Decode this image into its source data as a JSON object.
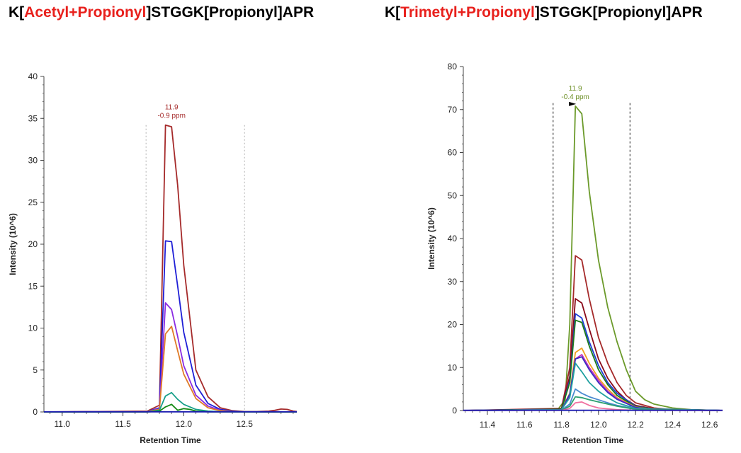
{
  "titles": {
    "left": {
      "prefix": "K[",
      "mod_red": "Acetyl+Propionyl",
      "suffix": "]STGGK[Propionyl]APR"
    },
    "right": {
      "prefix": "K[",
      "mod_red": "Trimetyl+Propionyl",
      "suffix": "]STGGK[Propionyl]APR"
    }
  },
  "colors": {
    "title_highlight": "#e8201c"
  },
  "chart_data": [
    {
      "type": "line",
      "title": "K[Acetyl+Propionyl]STGGK[Propionyl]APR",
      "xlabel": "Retention Time",
      "ylabel": "Intensity (10^6)",
      "xlim": [
        10.85,
        12.93
      ],
      "ylim": [
        0,
        40
      ],
      "xticks": [
        11.0,
        11.5,
        12.0,
        12.5
      ],
      "xtick_labels": [
        "11.0",
        "11.5",
        "12.0",
        "12.5"
      ],
      "yticks": [
        0,
        5,
        10,
        15,
        20,
        25,
        30,
        35,
        40
      ],
      "ytick_labels": [
        "0",
        "5",
        "10",
        "15",
        "20",
        "25",
        "30",
        "35",
        "40"
      ],
      "boundaries": [
        11.69,
        12.5
      ],
      "boundary_style": "gray-dotted",
      "peak_annotation": {
        "rt": "11.9",
        "ppm": "-0.9 ppm",
        "color": "#a52a2a",
        "at": [
          11.9,
          34.2
        ]
      },
      "series": [
        {
          "name": "brown",
          "color": "#a52a2a",
          "x": [
            10.85,
            11.7,
            11.8,
            11.85,
            11.9,
            11.95,
            12.0,
            12.1,
            12.2,
            12.3,
            12.4,
            12.5,
            12.6,
            12.7,
            12.75,
            12.8,
            12.85,
            12.9,
            12.93
          ],
          "y": [
            0,
            0.1,
            0.8,
            34.2,
            34.0,
            27.0,
            17.5,
            5.0,
            1.8,
            0.5,
            0.15,
            0.05,
            0.05,
            0.1,
            0.2,
            0.35,
            0.3,
            0.1,
            0.05
          ]
        },
        {
          "name": "blue",
          "color": "#1f1fd6",
          "x": [
            10.85,
            11.7,
            11.8,
            11.85,
            11.9,
            11.95,
            12.0,
            12.1,
            12.2,
            12.3,
            12.4,
            12.5,
            12.93
          ],
          "y": [
            0,
            0.05,
            0.5,
            20.4,
            20.3,
            15.0,
            9.5,
            3.2,
            1.0,
            0.3,
            0.1,
            0.03,
            0
          ]
        },
        {
          "name": "purple",
          "color": "#8a2be2",
          "x": [
            10.85,
            11.7,
            11.8,
            11.85,
            11.9,
            11.95,
            12.0,
            12.1,
            12.2,
            12.3,
            12.4,
            12.93
          ],
          "y": [
            0,
            0.05,
            0.4,
            13.0,
            12.2,
            9.0,
            5.5,
            2.0,
            0.7,
            0.2,
            0.05,
            0
          ]
        },
        {
          "name": "orange",
          "color": "#e07b28",
          "x": [
            10.85,
            11.7,
            11.8,
            11.85,
            11.9,
            11.95,
            12.0,
            12.1,
            12.2,
            12.3,
            12.4,
            12.93
          ],
          "y": [
            0,
            0.05,
            0.3,
            9.3,
            10.2,
            7.3,
            4.5,
            1.6,
            0.5,
            0.15,
            0.05,
            0
          ]
        },
        {
          "name": "teal",
          "color": "#18a08a",
          "x": [
            10.85,
            11.7,
            11.8,
            11.85,
            11.9,
            11.95,
            12.0,
            12.1,
            12.2,
            12.3,
            12.93
          ],
          "y": [
            0,
            0.02,
            0.2,
            1.9,
            2.3,
            1.5,
            0.9,
            0.3,
            0.1,
            0.03,
            0
          ]
        },
        {
          "name": "green",
          "color": "#138a13",
          "x": [
            10.85,
            11.7,
            11.8,
            11.85,
            11.9,
            11.95,
            12.0,
            12.05,
            12.1,
            12.2,
            12.93
          ],
          "y": [
            0,
            0,
            0.1,
            0.6,
            0.9,
            0.2,
            0.4,
            0.3,
            0.1,
            0.02,
            0
          ]
        },
        {
          "name": "navy baseline",
          "color": "#1b1bb0",
          "x": [
            10.85,
            12.93
          ],
          "y": [
            0.02,
            0.02
          ]
        }
      ]
    },
    {
      "type": "line",
      "title": "K[Trimetyl+Propionyl]STGGK[Propionyl]APR",
      "xlabel": "Retention Time",
      "ylabel": "Intensity (10^6)",
      "xlim": [
        11.27,
        12.67
      ],
      "ylim": [
        0,
        80
      ],
      "xticks": [
        11.4,
        11.6,
        11.8,
        12.0,
        12.2,
        12.4,
        12.6
      ],
      "xtick_labels": [
        "11.4",
        "11.6",
        "11.8",
        "12.0",
        "12.2",
        "12.4",
        "12.6"
      ],
      "yticks": [
        0,
        10,
        20,
        30,
        40,
        50,
        60,
        70,
        80
      ],
      "ytick_labels": [
        "0",
        "10",
        "20",
        "30",
        "40",
        "50",
        "60",
        "70",
        "80"
      ],
      "boundaries": [
        11.755,
        12.17
      ],
      "boundary_style": "black-dotted",
      "peak_annotation": {
        "rt": "11.9",
        "ppm": "-0.4 ppm",
        "color": "#6b8e23",
        "at": [
          11.875,
          70.8
        ]
      },
      "series": [
        {
          "name": "olive",
          "color": "#6b9a2a",
          "x": [
            11.27,
            11.78,
            11.82,
            11.845,
            11.875,
            11.91,
            11.95,
            12.0,
            12.05,
            12.1,
            12.15,
            12.2,
            12.25,
            12.3,
            12.4,
            12.5,
            12.67
          ],
          "y": [
            0,
            0.2,
            2.5,
            20.0,
            70.8,
            69.0,
            51.0,
            35.0,
            24.0,
            16.0,
            9.5,
            4.5,
            2.5,
            1.5,
            0.6,
            0.2,
            0
          ]
        },
        {
          "name": "brown",
          "color": "#a52a2a",
          "x": [
            11.27,
            11.8,
            11.845,
            11.875,
            11.91,
            11.95,
            12.0,
            12.05,
            12.1,
            12.15,
            12.2,
            12.3,
            12.4,
            12.67
          ],
          "y": [
            0,
            0.5,
            10.0,
            36.0,
            35.0,
            26.0,
            17.0,
            11.0,
            6.5,
            3.5,
            1.8,
            0.6,
            0.2,
            0
          ]
        },
        {
          "name": "dark red",
          "color": "#8b0a1a",
          "x": [
            11.27,
            11.8,
            11.845,
            11.875,
            11.91,
            11.95,
            12.0,
            12.05,
            12.1,
            12.15,
            12.2,
            12.3,
            12.67
          ],
          "y": [
            0,
            0.4,
            8.0,
            26.0,
            25.0,
            19.0,
            12.0,
            7.5,
            4.5,
            2.5,
            1.2,
            0.4,
            0
          ]
        },
        {
          "name": "blue",
          "color": "#1f3fd6",
          "x": [
            11.27,
            11.8,
            11.845,
            11.875,
            11.91,
            11.95,
            12.0,
            12.05,
            12.1,
            12.2,
            12.3,
            12.67
          ],
          "y": [
            0,
            0.3,
            7.0,
            22.5,
            21.5,
            16.0,
            10.5,
            6.5,
            4.0,
            1.0,
            0.3,
            0
          ]
        },
        {
          "name": "green",
          "color": "#1a7a1a",
          "x": [
            11.27,
            11.8,
            11.845,
            11.875,
            11.91,
            11.95,
            12.0,
            12.05,
            12.1,
            12.2,
            12.3,
            12.67
          ],
          "y": [
            0,
            0.3,
            6.5,
            21.0,
            20.5,
            15.0,
            9.5,
            6.0,
            3.5,
            0.9,
            0.3,
            0
          ]
        },
        {
          "name": "orange",
          "color": "#f0a020",
          "x": [
            11.27,
            11.8,
            11.845,
            11.875,
            11.91,
            11.95,
            12.0,
            12.05,
            12.1,
            12.2,
            12.3,
            12.67
          ],
          "y": [
            0,
            0.2,
            4.0,
            13.5,
            14.5,
            11.0,
            7.5,
            5.0,
            3.0,
            0.8,
            0.2,
            0
          ]
        },
        {
          "name": "magenta",
          "color": "#c030c0",
          "x": [
            11.27,
            11.8,
            11.845,
            11.875,
            11.91,
            11.95,
            12.0,
            12.05,
            12.1,
            12.2,
            12.3,
            12.67
          ],
          "y": [
            0,
            0.2,
            3.5,
            12.0,
            13.0,
            10.0,
            7.0,
            4.5,
            2.8,
            0.7,
            0.2,
            0
          ]
        },
        {
          "name": "indigo",
          "color": "#3a2ec0",
          "x": [
            11.27,
            11.8,
            11.845,
            11.875,
            11.91,
            11.95,
            12.0,
            12.05,
            12.1,
            12.2,
            12.3,
            12.67
          ],
          "y": [
            0,
            0.2,
            3.8,
            12.0,
            12.5,
            9.5,
            6.5,
            4.2,
            2.6,
            0.7,
            0.2,
            0
          ]
        },
        {
          "name": "teal",
          "color": "#20a0a0",
          "x": [
            11.27,
            11.8,
            11.845,
            11.875,
            11.91,
            11.95,
            12.0,
            12.05,
            12.1,
            12.2,
            12.67
          ],
          "y": [
            0,
            0.2,
            3.0,
            11.0,
            9.0,
            6.5,
            4.5,
            3.0,
            1.8,
            0.5,
            0
          ]
        },
        {
          "name": "light blue",
          "color": "#4a8ad0",
          "x": [
            11.27,
            11.8,
            11.845,
            11.875,
            11.91,
            11.95,
            12.0,
            12.05,
            12.1,
            12.2,
            12.67
          ],
          "y": [
            0,
            0.1,
            1.5,
            5.0,
            4.0,
            3.2,
            2.5,
            1.8,
            1.2,
            0.4,
            0
          ]
        },
        {
          "name": "sea green",
          "color": "#2aa070",
          "x": [
            11.27,
            11.8,
            11.845,
            11.875,
            11.91,
            11.95,
            12.0,
            12.05,
            12.1,
            12.2,
            12.67
          ],
          "y": [
            0,
            0.1,
            1.0,
            3.2,
            3.0,
            2.5,
            2.0,
            1.5,
            1.0,
            0.3,
            0
          ]
        },
        {
          "name": "pink",
          "color": "#f070a0",
          "x": [
            11.27,
            11.8,
            11.845,
            11.875,
            11.91,
            11.95,
            12.0,
            12.1,
            12.2,
            12.67
          ],
          "y": [
            0,
            0.05,
            0.5,
            1.8,
            2.0,
            1.2,
            0.6,
            0.2,
            0.05,
            0
          ]
        },
        {
          "name": "navy baseline",
          "color": "#1b1bb0",
          "x": [
            11.27,
            12.67
          ],
          "y": [
            0.05,
            0.05
          ]
        }
      ]
    }
  ]
}
